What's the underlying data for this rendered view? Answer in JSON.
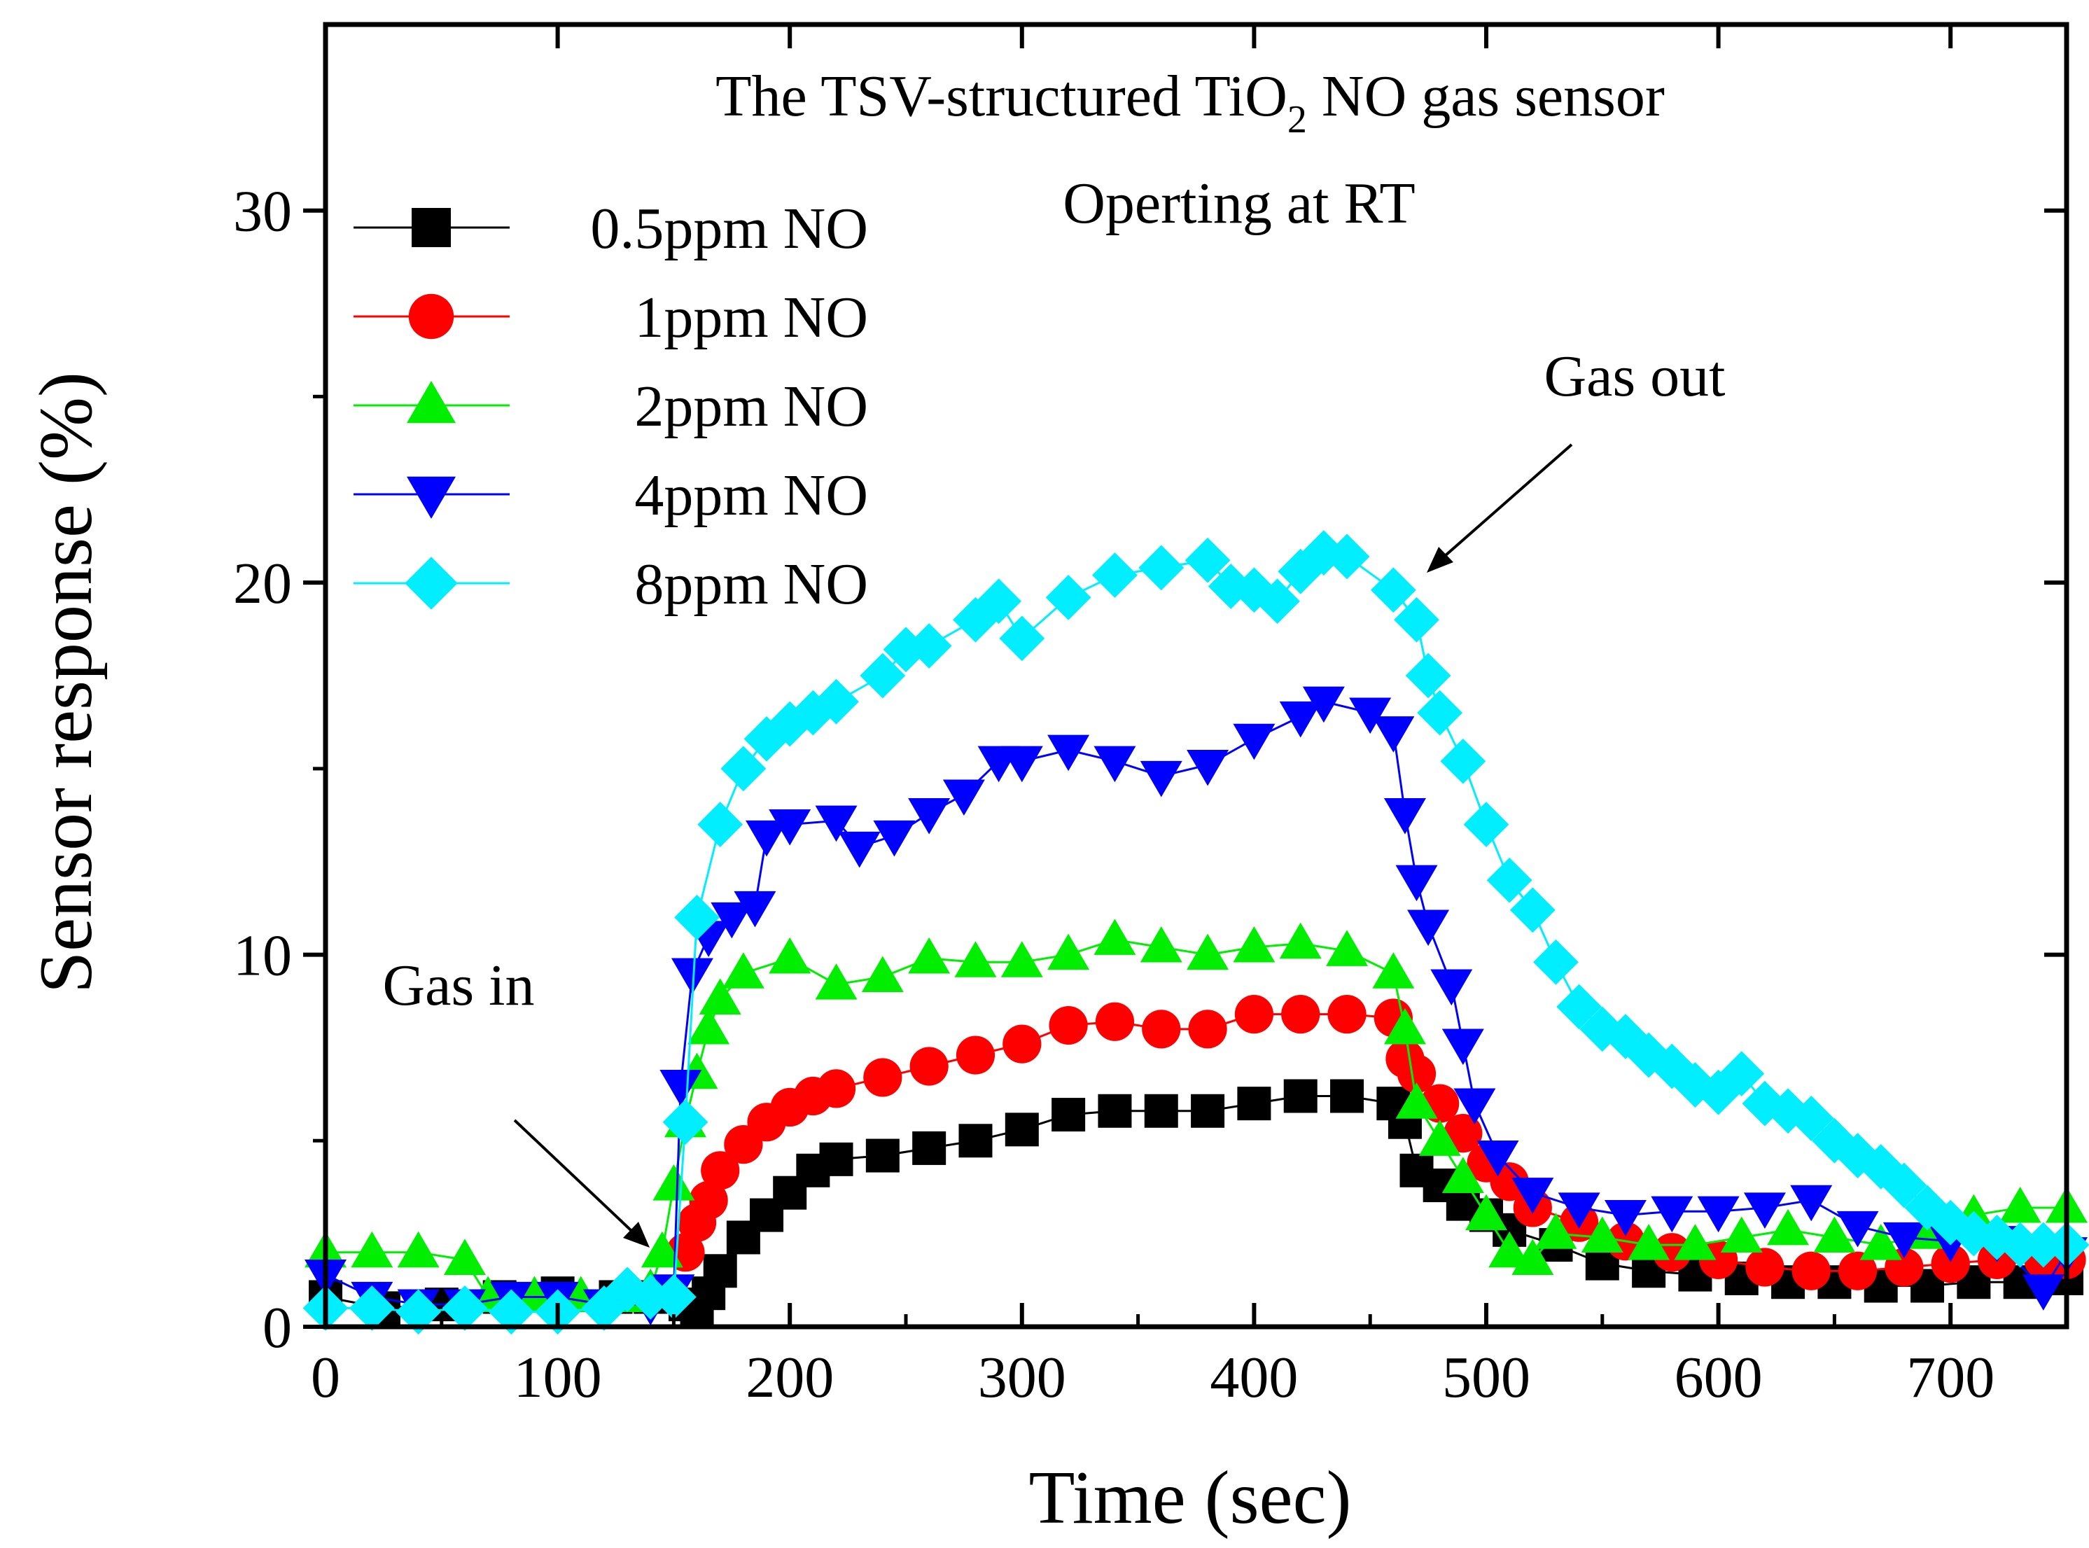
{
  "chart_data": {
    "type": "line",
    "title_line1_prefix": "The TSV-structured TiO",
    "title_line1_subscript": "2",
    "title_line1_suffix": " NO gas sensor",
    "title_line2": "Operting at RT",
    "xlabel": "Time (sec)",
    "ylabel": "Sensor response (%)",
    "xlim": [
      0,
      750
    ],
    "ylim": [
      0,
      35
    ],
    "xticks": [
      0,
      100,
      200,
      300,
      400,
      500,
      600,
      700
    ],
    "yticks": [
      0,
      10,
      20,
      30
    ],
    "grid": false,
    "legend_position": "top-left",
    "annotations": [
      {
        "name": "gas-in",
        "text": "Gas in",
        "arrow_to": [
          140,
          1.8
        ]
      },
      {
        "name": "gas-out",
        "text": "Gas out",
        "arrow_to": [
          470,
          20.2
        ]
      }
    ],
    "series": [
      {
        "name": "0.5ppm NO",
        "color": "#000000",
        "marker": "square",
        "points": [
          [
            0,
            0.8
          ],
          [
            25,
            0.5
          ],
          [
            50,
            0.6
          ],
          [
            75,
            0.8
          ],
          [
            100,
            0.9
          ],
          [
            125,
            0.8
          ],
          [
            140,
            0.8
          ],
          [
            155,
            0.6
          ],
          [
            160,
            0.5
          ],
          [
            165,
            0.9
          ],
          [
            170,
            1.5
          ],
          [
            180,
            2.4
          ],
          [
            190,
            3.0
          ],
          [
            200,
            3.6
          ],
          [
            210,
            4.2
          ],
          [
            220,
            4.5
          ],
          [
            240,
            4.6
          ],
          [
            260,
            4.8
          ],
          [
            280,
            5.0
          ],
          [
            300,
            5.3
          ],
          [
            320,
            5.7
          ],
          [
            340,
            5.8
          ],
          [
            360,
            5.8
          ],
          [
            380,
            5.8
          ],
          [
            400,
            6.0
          ],
          [
            420,
            6.2
          ],
          [
            440,
            6.2
          ],
          [
            460,
            6.0
          ],
          [
            465,
            5.5
          ],
          [
            470,
            4.2
          ],
          [
            480,
            3.8
          ],
          [
            490,
            3.3
          ],
          [
            500,
            3.0
          ],
          [
            510,
            2.6
          ],
          [
            530,
            2.2
          ],
          [
            550,
            1.7
          ],
          [
            570,
            1.5
          ],
          [
            590,
            1.4
          ],
          [
            610,
            1.3
          ],
          [
            630,
            1.2
          ],
          [
            650,
            1.2
          ],
          [
            670,
            1.1
          ],
          [
            690,
            1.1
          ],
          [
            710,
            1.2
          ],
          [
            730,
            1.2
          ],
          [
            750,
            1.3
          ]
        ]
      },
      {
        "name": "1ppm NO",
        "color": "#ff0000",
        "marker": "circle",
        "points": [
          [
            155,
            2.0
          ],
          [
            160,
            2.8
          ],
          [
            165,
            3.4
          ],
          [
            170,
            4.2
          ],
          [
            180,
            4.9
          ],
          [
            190,
            5.5
          ],
          [
            200,
            5.9
          ],
          [
            210,
            6.2
          ],
          [
            220,
            6.4
          ],
          [
            240,
            6.7
          ],
          [
            260,
            7.0
          ],
          [
            280,
            7.3
          ],
          [
            300,
            7.6
          ],
          [
            320,
            8.1
          ],
          [
            340,
            8.2
          ],
          [
            360,
            8.0
          ],
          [
            380,
            8.0
          ],
          [
            400,
            8.4
          ],
          [
            420,
            8.4
          ],
          [
            440,
            8.4
          ],
          [
            460,
            8.3
          ],
          [
            465,
            7.2
          ],
          [
            470,
            6.8
          ],
          [
            480,
            6.0
          ],
          [
            490,
            5.2
          ],
          [
            500,
            4.4
          ],
          [
            510,
            3.9
          ],
          [
            520,
            3.2
          ],
          [
            540,
            2.8
          ],
          [
            560,
            2.3
          ],
          [
            580,
            2.0
          ],
          [
            600,
            1.8
          ],
          [
            620,
            1.6
          ],
          [
            640,
            1.5
          ],
          [
            660,
            1.5
          ],
          [
            680,
            1.6
          ],
          [
            700,
            1.7
          ],
          [
            720,
            1.8
          ],
          [
            740,
            1.8
          ],
          [
            750,
            1.8
          ]
        ]
      },
      {
        "name": "2ppm NO",
        "color": "#00ee00",
        "marker": "triangle-up",
        "points": [
          [
            0,
            2.0
          ],
          [
            20,
            2.0
          ],
          [
            40,
            2.0
          ],
          [
            60,
            1.8
          ],
          [
            70,
            0.8
          ],
          [
            90,
            0.8
          ],
          [
            110,
            0.8
          ],
          [
            130,
            0.8
          ],
          [
            140,
            1.0
          ],
          [
            145,
            2.0
          ],
          [
            150,
            3.8
          ],
          [
            155,
            5.5
          ],
          [
            160,
            6.8
          ],
          [
            165,
            8.0
          ],
          [
            170,
            8.8
          ],
          [
            180,
            9.5
          ],
          [
            200,
            9.9
          ],
          [
            220,
            9.2
          ],
          [
            240,
            9.4
          ],
          [
            260,
            9.9
          ],
          [
            280,
            9.8
          ],
          [
            300,
            9.8
          ],
          [
            320,
            10.0
          ],
          [
            340,
            10.4
          ],
          [
            360,
            10.2
          ],
          [
            380,
            10.0
          ],
          [
            400,
            10.2
          ],
          [
            420,
            10.3
          ],
          [
            440,
            10.1
          ],
          [
            460,
            9.5
          ],
          [
            465,
            8.0
          ],
          [
            470,
            6.0
          ],
          [
            480,
            5.0
          ],
          [
            490,
            4.0
          ],
          [
            500,
            3.0
          ],
          [
            510,
            2.0
          ],
          [
            520,
            1.8
          ],
          [
            530,
            2.5
          ],
          [
            550,
            2.4
          ],
          [
            570,
            2.2
          ],
          [
            590,
            2.2
          ],
          [
            610,
            2.4
          ],
          [
            630,
            2.6
          ],
          [
            650,
            2.4
          ],
          [
            670,
            2.2
          ],
          [
            690,
            2.5
          ],
          [
            710,
            3.0
          ],
          [
            730,
            3.2
          ],
          [
            750,
            3.2
          ]
        ]
      },
      {
        "name": "4ppm NO",
        "color": "#0000ff",
        "marker": "triangle-down",
        "points": [
          [
            0,
            1.4
          ],
          [
            20,
            0.8
          ],
          [
            40,
            0.6
          ],
          [
            60,
            0.6
          ],
          [
            80,
            0.8
          ],
          [
            100,
            0.8
          ],
          [
            120,
            0.6
          ],
          [
            140,
            0.6
          ],
          [
            150,
            1.0
          ],
          [
            153,
            6.5
          ],
          [
            158,
            9.5
          ],
          [
            165,
            10.5
          ],
          [
            175,
            11.0
          ],
          [
            185,
            11.3
          ],
          [
            190,
            13.2
          ],
          [
            200,
            13.5
          ],
          [
            220,
            13.6
          ],
          [
            230,
            12.9
          ],
          [
            245,
            13.2
          ],
          [
            260,
            13.8
          ],
          [
            275,
            14.3
          ],
          [
            290,
            15.2
          ],
          [
            300,
            15.2
          ],
          [
            320,
            15.5
          ],
          [
            340,
            15.2
          ],
          [
            360,
            14.8
          ],
          [
            380,
            15.1
          ],
          [
            400,
            15.8
          ],
          [
            420,
            16.4
          ],
          [
            430,
            16.8
          ],
          [
            450,
            16.5
          ],
          [
            460,
            16.0
          ],
          [
            465,
            13.8
          ],
          [
            470,
            12.0
          ],
          [
            475,
            10.8
          ],
          [
            485,
            9.2
          ],
          [
            490,
            7.6
          ],
          [
            495,
            6.0
          ],
          [
            505,
            4.6
          ],
          [
            520,
            3.6
          ],
          [
            540,
            3.2
          ],
          [
            560,
            3.0
          ],
          [
            580,
            3.1
          ],
          [
            600,
            3.1
          ],
          [
            620,
            3.2
          ],
          [
            640,
            3.4
          ],
          [
            660,
            2.7
          ],
          [
            680,
            2.4
          ],
          [
            700,
            2.3
          ],
          [
            720,
            2.3
          ],
          [
            740,
            1.0
          ],
          [
            750,
            2.0
          ]
        ]
      },
      {
        "name": "8ppm NO",
        "color": "#00eeff",
        "marker": "diamond",
        "points": [
          [
            0,
            0.5
          ],
          [
            20,
            0.5
          ],
          [
            40,
            0.4
          ],
          [
            60,
            0.5
          ],
          [
            80,
            0.4
          ],
          [
            100,
            0.4
          ],
          [
            120,
            0.5
          ],
          [
            130,
            1.0
          ],
          [
            140,
            0.8
          ],
          [
            150,
            0.8
          ],
          [
            155,
            5.5
          ],
          [
            160,
            11.0
          ],
          [
            170,
            13.5
          ],
          [
            180,
            15.0
          ],
          [
            190,
            15.8
          ],
          [
            200,
            16.2
          ],
          [
            210,
            16.5
          ],
          [
            220,
            16.8
          ],
          [
            240,
            17.5
          ],
          [
            250,
            18.2
          ],
          [
            260,
            18.3
          ],
          [
            280,
            19.0
          ],
          [
            290,
            19.5
          ],
          [
            300,
            18.5
          ],
          [
            320,
            19.6
          ],
          [
            340,
            20.2
          ],
          [
            360,
            20.4
          ],
          [
            380,
            20.6
          ],
          [
            390,
            19.9
          ],
          [
            400,
            19.8
          ],
          [
            410,
            19.5
          ],
          [
            420,
            20.3
          ],
          [
            430,
            20.8
          ],
          [
            440,
            20.7
          ],
          [
            460,
            19.8
          ],
          [
            470,
            19.0
          ],
          [
            475,
            17.5
          ],
          [
            480,
            16.5
          ],
          [
            490,
            15.2
          ],
          [
            500,
            13.5
          ],
          [
            510,
            12.0
          ],
          [
            520,
            11.2
          ],
          [
            530,
            9.8
          ],
          [
            540,
            8.6
          ],
          [
            550,
            8.0
          ],
          [
            560,
            7.8
          ],
          [
            570,
            7.3
          ],
          [
            580,
            7.0
          ],
          [
            590,
            6.5
          ],
          [
            600,
            6.3
          ],
          [
            610,
            6.8
          ],
          [
            620,
            6.0
          ],
          [
            630,
            5.8
          ],
          [
            640,
            5.6
          ],
          [
            650,
            5.0
          ],
          [
            660,
            4.6
          ],
          [
            670,
            4.3
          ],
          [
            680,
            3.8
          ],
          [
            690,
            3.2
          ],
          [
            700,
            2.8
          ],
          [
            710,
            2.5
          ],
          [
            720,
            2.4
          ],
          [
            730,
            2.2
          ],
          [
            740,
            2.2
          ],
          [
            750,
            2.2
          ]
        ]
      }
    ]
  }
}
